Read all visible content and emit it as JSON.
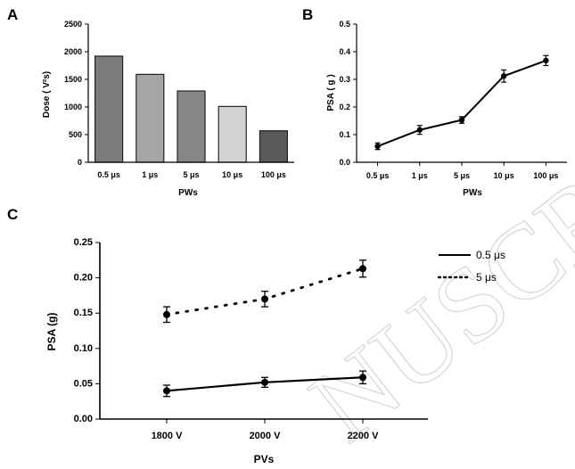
{
  "chart_data": [
    {
      "panel": "A",
      "type": "bar",
      "categories": [
        "0.5 μs",
        "1 μs",
        "5 μs",
        "10 μs",
        "100 μs"
      ],
      "values": [
        1920,
        1590,
        1290,
        1010,
        570
      ],
      "colors": [
        "#7b7b7b",
        "#a6a6a6",
        "#868686",
        "#d4d4d4",
        "#595959"
      ],
      "xlabel": "PWs",
      "ylabel": "Dose ( V²s)",
      "ylim": [
        0,
        2500
      ],
      "yticks": [
        0,
        500,
        1000,
        1500,
        2000,
        2500
      ],
      "ytick_labels": [
        "0",
        "500",
        "1000",
        "1500",
        "2000",
        "2500"
      ],
      "grid": false
    },
    {
      "panel": "B",
      "type": "line",
      "categories": [
        "0.5 μs",
        "1 μs",
        "5 μs",
        "10 μs",
        "100 μs"
      ],
      "values": [
        0.058,
        0.117,
        0.153,
        0.312,
        0.368
      ],
      "errors": [
        0.012,
        0.016,
        0.012,
        0.022,
        0.018
      ],
      "xlabel": "PWs",
      "ylabel": "PSA ( g )",
      "ylim": [
        0,
        0.5
      ],
      "yticks": [
        0,
        0.1,
        0.2,
        0.3,
        0.4,
        0.5
      ],
      "ytick_labels": [
        "0.0",
        "0.1",
        "0.2",
        "0.3",
        "0.4",
        "0.5"
      ],
      "grid": false
    },
    {
      "panel": "C",
      "type": "line",
      "categories": [
        "1800 V",
        "2000 V",
        "2200 V"
      ],
      "series": [
        {
          "name": "0.5 μs",
          "style": "solid",
          "values": [
            0.04,
            0.052,
            0.059
          ],
          "errors": [
            0.008,
            0.007,
            0.009
          ]
        },
        {
          "name": "5 μs",
          "style": "dotted",
          "values": [
            0.148,
            0.17,
            0.213
          ],
          "errors": [
            0.011,
            0.011,
            0.012
          ]
        }
      ],
      "xlabel": "PVs",
      "ylabel": "PSA (g)",
      "ylim": [
        0,
        0.25
      ],
      "yticks": [
        0,
        0.05,
        0.1,
        0.15,
        0.2,
        0.25
      ],
      "ytick_labels": [
        "0.00",
        "0.05",
        "0.10",
        "0.15",
        "0.20",
        "0.25"
      ],
      "legend": "top-right",
      "grid": false
    }
  ],
  "watermark": "NUSCRIPT"
}
